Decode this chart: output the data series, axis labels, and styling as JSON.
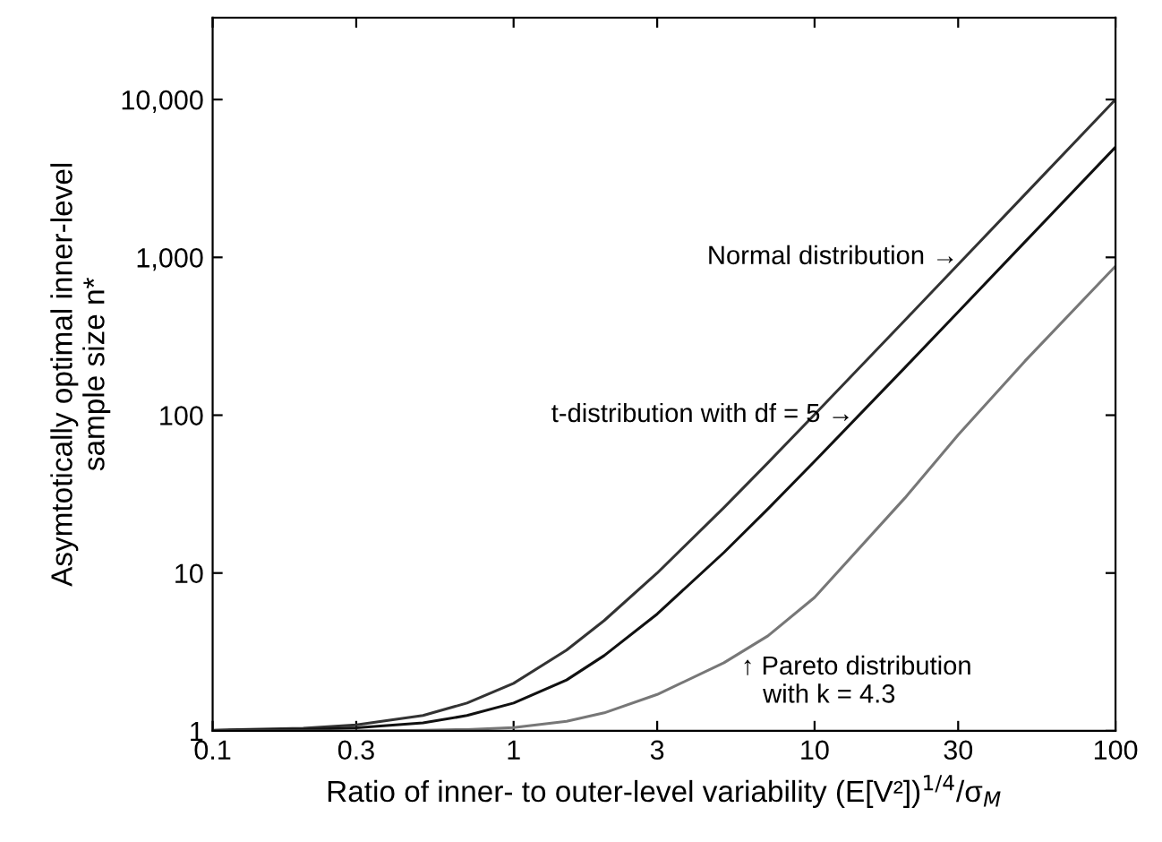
{
  "chart_data": {
    "type": "line",
    "xlabel": "Ratio of inner- to outer-level variability (E[V²])$^{1/4}$/σ$_{M}$",
    "ylabel": "Asymtotically optimal inner-level\nsample size n*",
    "x": [
      0.1,
      0.2,
      0.3,
      0.5,
      0.7,
      1,
      1.5,
      2,
      3,
      5,
      7,
      10,
      20,
      30,
      50,
      100
    ],
    "series": [
      {
        "color": "#333333",
        "values": [
          1.01,
          1.04,
          1.09,
          1.25,
          1.5,
          2,
          3.25,
          5,
          10,
          26,
          50,
          101,
          401,
          901,
          2501,
          10000
        ]
      },
      {
        "color": "#111111",
        "values": [
          1.005,
          1.02,
          1.045,
          1.125,
          1.25,
          1.5,
          2.1,
          3,
          5.5,
          13.5,
          25.5,
          51,
          201,
          451,
          1251,
          5000
        ]
      },
      {
        "color": "#777777",
        "values": [
          1,
          1,
          1,
          1.01,
          1.02,
          1.05,
          1.15,
          1.3,
          1.7,
          2.7,
          4,
          7,
          30,
          75,
          220,
          880
        ]
      }
    ],
    "annotations": [
      {
        "text": "Normal distribution →",
        "x": 30,
        "y": 1000
      },
      {
        "text": "t-distribution with df = 5 →",
        "x": 13.5,
        "y": 100
      },
      {
        "text": "↑ Pareto distribution\n   with k = 4.3",
        "x": 5.7,
        "y": 3
      }
    ],
    "log": "xy",
    "xlim": [
      0.1,
      100
    ],
    "ylim": [
      1,
      33000
    ],
    "xticks": [
      0.1,
      0.3,
      1,
      3,
      10,
      30,
      100
    ],
    "yticks": [
      1,
      10,
      100,
      {
        "value": 1000,
        "label": "1,000"
      },
      {
        "value": 10000,
        "label": "10,000"
      }
    ],
    "grid": false,
    "legend": false,
    "marker": "none",
    "line_style": "solid"
  }
}
